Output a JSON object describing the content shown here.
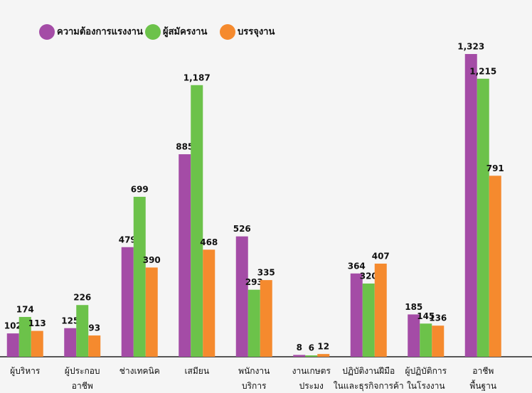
{
  "chart_data": {
    "type": "bar",
    "categories": [
      [
        "ผู้บริหาร"
      ],
      [
        "ผู้ประกอบ",
        "อาชีพ"
      ],
      [
        "ช่างเทคนิค"
      ],
      [
        "เสมียน"
      ],
      [
        "พนักงาน",
        "บริการ"
      ],
      [
        "งานเกษตร",
        "ประมง"
      ],
      [
        "ปฏิบัติงานฝีมือ",
        "ในและธุรกิจการค้า"
      ],
      [
        "ผู้ปฏิบัติการ",
        "ในโรงงาน"
      ],
      [
        "อาชีพ",
        "พื้นฐาน"
      ]
    ],
    "series": [
      {
        "name": "ความต้องการแรงงาน",
        "color": "#a44ca6",
        "values": [
          102,
          125,
          479,
          885,
          526,
          8,
          364,
          185,
          1323
        ],
        "value_labels": [
          "102",
          "125",
          "479",
          "885",
          "526",
          "8",
          "364",
          "185",
          "1,323"
        ]
      },
      {
        "name": "ผู้สมัครงาน",
        "color": "#6cc24a",
        "values": [
          174,
          226,
          699,
          1187,
          293,
          6,
          320,
          145,
          1215
        ],
        "value_labels": [
          "174",
          "226",
          "699",
          "1,187",
          "293",
          "6",
          "320",
          "145",
          "1,215"
        ]
      },
      {
        "name": "บรรจุงาน",
        "color": "#f58a2e",
        "values": [
          113,
          93,
          390,
          468,
          335,
          12,
          407,
          136,
          791
        ],
        "value_labels": [
          "113",
          "93",
          "390",
          "468",
          "335",
          "12",
          "407",
          "136",
          "791"
        ]
      }
    ]
  }
}
